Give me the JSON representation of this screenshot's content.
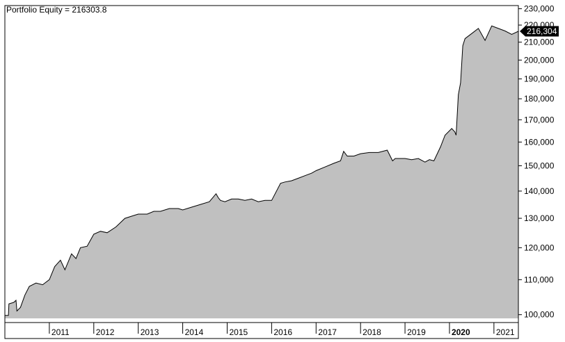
{
  "chart_data": {
    "type": "area",
    "title": "Portfolio Equity = 216303.8",
    "last_value_label": "216,304",
    "log_scale": true,
    "ylim": [
      99000,
      232000
    ],
    "xlim": [
      2010.0,
      2021.55
    ],
    "y_ticks": [
      {
        "value": 100000,
        "label": "100,000"
      },
      {
        "value": 110000,
        "label": "110,000"
      },
      {
        "value": 120000,
        "label": "120,000"
      },
      {
        "value": 130000,
        "label": "130,000"
      },
      {
        "value": 140000,
        "label": "140,000"
      },
      {
        "value": 150000,
        "label": "150,000"
      },
      {
        "value": 160000,
        "label": "160,000"
      },
      {
        "value": 170000,
        "label": "170,000"
      },
      {
        "value": 180000,
        "label": "180,000"
      },
      {
        "value": 190000,
        "label": "190,000"
      },
      {
        "value": 200000,
        "label": "200,000"
      },
      {
        "value": 210000,
        "label": "210,000"
      },
      {
        "value": 220000,
        "label": "220,000"
      },
      {
        "value": 230000,
        "label": "230,000"
      }
    ],
    "x_ticks": [
      {
        "value": 2011,
        "label": "2011",
        "bold": false
      },
      {
        "value": 2012,
        "label": "2012",
        "bold": false
      },
      {
        "value": 2013,
        "label": "2013",
        "bold": false
      },
      {
        "value": 2014,
        "label": "2014",
        "bold": false
      },
      {
        "value": 2015,
        "label": "2015",
        "bold": false
      },
      {
        "value": 2016,
        "label": "2016",
        "bold": false
      },
      {
        "value": 2017,
        "label": "2017",
        "bold": false
      },
      {
        "value": 2018,
        "label": "2018",
        "bold": false
      },
      {
        "value": 2019,
        "label": "2019",
        "bold": false
      },
      {
        "value": 2020,
        "label": "2020",
        "bold": true
      },
      {
        "value": 2021,
        "label": "2021",
        "bold": false
      }
    ],
    "series": [
      {
        "color": "#c0c0c0",
        "line_color": "#000000",
        "x": [
          2010.0,
          2010.08,
          2010.09,
          2010.2,
          2010.25,
          2010.27,
          2010.35,
          2010.45,
          2010.55,
          2010.7,
          2010.85,
          2011.0,
          2011.12,
          2011.25,
          2011.35,
          2011.5,
          2011.6,
          2011.7,
          2011.85,
          2012.0,
          2012.15,
          2012.3,
          2012.5,
          2012.7,
          2012.9,
          2013.0,
          2013.1,
          2013.2,
          2013.35,
          2013.5,
          2013.7,
          2013.9,
          2014.0,
          2014.2,
          2014.4,
          2014.6,
          2014.75,
          2014.8,
          2014.85,
          2014.95,
          2015.1,
          2015.25,
          2015.4,
          2015.55,
          2015.7,
          2015.85,
          2016.0,
          2016.2,
          2016.3,
          2016.45,
          2016.6,
          2016.75,
          2016.9,
          2017.0,
          2017.2,
          2017.4,
          2017.55,
          2017.62,
          2017.7,
          2017.85,
          2018.0,
          2018.2,
          2018.4,
          2018.6,
          2018.72,
          2018.78,
          2018.9,
          2019.0,
          2019.15,
          2019.3,
          2019.45,
          2019.55,
          2019.65,
          2019.8,
          2019.9,
          2020.05,
          2020.12,
          2020.15,
          2020.2,
          2020.25,
          2020.3,
          2020.35,
          2020.45,
          2020.55,
          2020.65,
          2020.8,
          2020.95,
          2021.1,
          2021.25,
          2021.4,
          2021.55
        ],
        "y": [
          99800,
          99800,
          103000,
          103400,
          104000,
          101000,
          102000,
          105500,
          108000,
          109000,
          108500,
          110000,
          114000,
          116000,
          113000,
          118000,
          116500,
          120000,
          120500,
          124500,
          125500,
          125000,
          127000,
          130000,
          131000,
          131500,
          131500,
          131500,
          132500,
          132500,
          133500,
          133500,
          133000,
          134000,
          135000,
          136000,
          139000,
          137500,
          136500,
          136000,
          137000,
          137000,
          136500,
          137000,
          136000,
          136500,
          136500,
          143000,
          143500,
          144000,
          145000,
          146000,
          147000,
          148000,
          149500,
          151000,
          152000,
          156000,
          154000,
          154000,
          155000,
          155500,
          155500,
          156500,
          152000,
          153000,
          153000,
          153000,
          152500,
          153000,
          151500,
          152500,
          152000,
          158000,
          163000,
          166000,
          164500,
          163000,
          182000,
          188000,
          208000,
          212000,
          214000,
          216000,
          218000,
          211000,
          219500,
          218000,
          216500,
          214500,
          216304
        ]
      }
    ]
  }
}
